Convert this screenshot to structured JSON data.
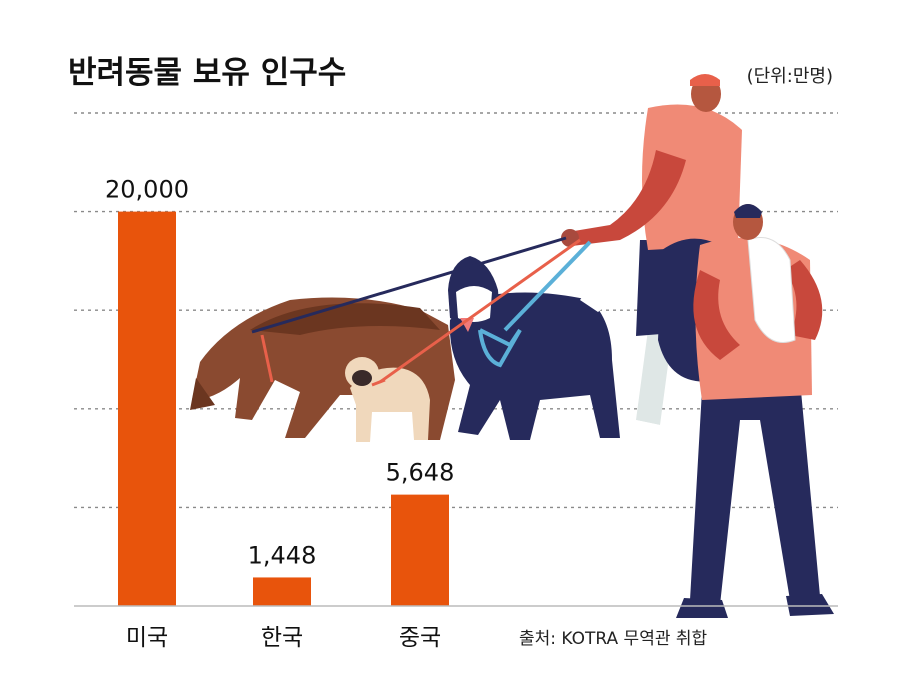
{
  "chart_data": {
    "type": "bar",
    "title": "반려동물 보유 인구수",
    "unit_note": "(단위:만명)",
    "categories": [
      "미국",
      "한국",
      "중국"
    ],
    "value_labels": [
      "20,000",
      "1,448",
      "5,648"
    ],
    "series": [
      {
        "values": [
          20000,
          1448,
          5648
        ]
      }
    ],
    "ylim": [
      0,
      25000
    ],
    "y_gridlines": [
      5000,
      10000,
      15000,
      20000,
      25000
    ],
    "grid": "dashed horizontal",
    "legend": "none",
    "source": "출처: KOTRA 무역관 취합",
    "colors": {
      "bar": "#e8540c",
      "grid": "#8a8a8a",
      "text": "#111111"
    }
  },
  "illustration": {
    "icons": [
      "dog-walker-person-icon",
      "person-holding-cat-icon",
      "german-shepherd-icon",
      "pug-icon",
      "husky-icon"
    ]
  }
}
